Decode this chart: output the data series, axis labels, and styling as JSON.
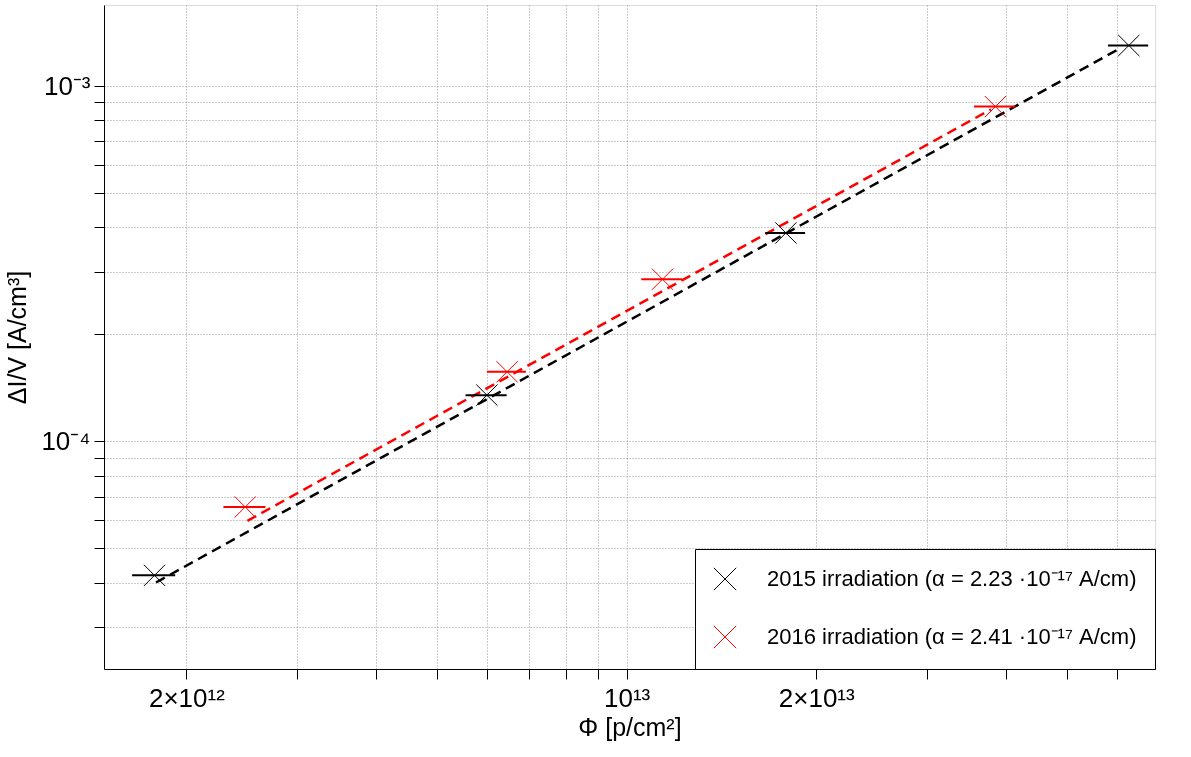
{
  "chart_data": {
    "type": "scatter",
    "xlabel": "Φ [p/cm²]",
    "ylabel": "ΔI/V [A/cm³]",
    "log": "xy",
    "grid": true,
    "legend": "bottom right",
    "xlim": [
      1480000000000.0,
      69000000000000.0
    ],
    "ylim": [
      2.29e-05,
      0.00169
    ],
    "xticks": [
      {
        "value": 2000000000000.0,
        "label": "2×10¹²"
      },
      {
        "value": 3000000000000.0,
        "label": null
      },
      {
        "value": 4000000000000.0,
        "label": null
      },
      {
        "value": 5000000000000.0,
        "label": null
      },
      {
        "value": 6000000000000.0,
        "label": null
      },
      {
        "value": 7000000000000.0,
        "label": null
      },
      {
        "value": 8000000000000.0,
        "label": null
      },
      {
        "value": 9000000000000.0,
        "label": null
      },
      {
        "value": 10000000000000.0,
        "label": "10¹³"
      },
      {
        "value": 20000000000000.0,
        "label": "2×10¹³"
      },
      {
        "value": 30000000000000.0,
        "label": null
      },
      {
        "value": 40000000000000.0,
        "label": null
      },
      {
        "value": 50000000000000.0,
        "label": null
      },
      {
        "value": 60000000000000.0,
        "label": null
      }
    ],
    "yticks": [
      {
        "value": 3e-05,
        "label": null
      },
      {
        "value": 4e-05,
        "label": null
      },
      {
        "value": 5e-05,
        "label": null
      },
      {
        "value": 6e-05,
        "label": null
      },
      {
        "value": 7e-05,
        "label": null
      },
      {
        "value": 8e-05,
        "label": null
      },
      {
        "value": 9e-05,
        "label": null
      },
      {
        "value": 0.0001,
        "label": "10⁻⁴"
      },
      {
        "value": 0.0002,
        "label": null
      },
      {
        "value": 0.0003,
        "label": null
      },
      {
        "value": 0.0004,
        "label": null
      },
      {
        "value": 0.0005,
        "label": null
      },
      {
        "value": 0.0006,
        "label": null
      },
      {
        "value": 0.0007,
        "label": null
      },
      {
        "value": 0.0008,
        "label": null
      },
      {
        "value": 0.0009,
        "label": null
      },
      {
        "value": 0.001,
        "label": "10⁻³"
      }
    ],
    "series": [
      {
        "type": "line",
        "color": "#000000",
        "line_style": "dashed",
        "marker": "none",
        "x": [
          1790000000000.0,
          60400000000000.0
        ],
        "values": [
          4.01e-05,
          0.00127
        ]
      },
      {
        "type": "line",
        "color": "#ff0000",
        "line_style": "dashed",
        "marker": "none",
        "x": [
          2500000000000.0,
          37900000000000.0
        ],
        "values": [
          5.98e-05,
          0.00086
        ]
      },
      {
        "name": "2015 irradiation (α = 2.23 ·10⁻¹⁷ A/cm)",
        "color": "#000000",
        "marker": "cross",
        "x": [
          1780000000000.0,
          6000000000000.0,
          17900000000000.0,
          62700000000000.0
        ],
        "values": [
          4.2e-05,
          0.000135,
          0.000386,
          0.0013
        ],
        "xerrors": [
          140000000000.0,
          450000000000.0,
          1300000000000.0,
          4600000000000.0
        ]
      },
      {
        "name": "2016 irradiation (α = 2.41 ·10⁻¹⁷ A/cm)",
        "color": "#ff0000",
        "marker": "cross",
        "x": [
          2480000000000.0,
          6460000000000.0,
          11400000000000.0,
          38500000000000.0
        ],
        "values": [
          6.54e-05,
          0.000157,
          0.000286,
          0.000875
        ],
        "xerrors": [
          190000000000.0,
          460000000000.0,
          850000000000.0,
          2900000000000.0
        ]
      }
    ]
  }
}
